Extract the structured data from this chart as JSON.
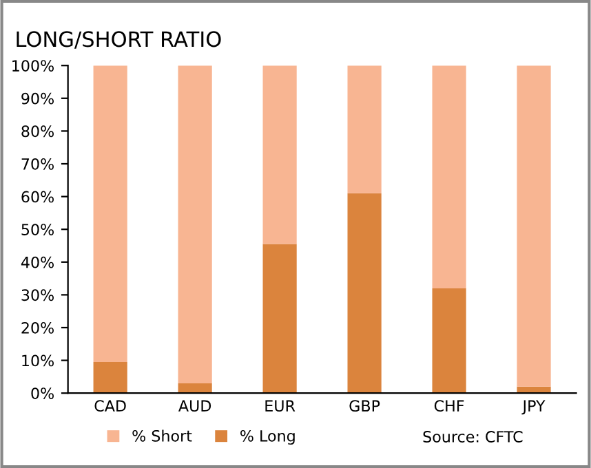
{
  "chart_data": {
    "type": "bar",
    "title": "LONG/SHORT RATIO",
    "stacked": true,
    "categories": [
      "CAD",
      "AUD",
      "EUR",
      "GBP",
      "CHF",
      "JPY"
    ],
    "series": [
      {
        "name": "% Long",
        "color": "#db843d",
        "values": [
          9.5,
          3,
          45.5,
          61,
          32,
          2
        ]
      },
      {
        "name": "% Short",
        "color": "#f8b592",
        "values": [
          90.5,
          97,
          54.5,
          39,
          68,
          98
        ]
      }
    ],
    "ylim": [
      0,
      100
    ],
    "yticks": [
      {
        "value": 0,
        "label": "0%"
      },
      {
        "value": 10,
        "label": "10%"
      },
      {
        "value": 20,
        "label": "20%"
      },
      {
        "value": 30,
        "label": "30%"
      },
      {
        "value": 40,
        "label": "40%"
      },
      {
        "value": 50,
        "label": "50%"
      },
      {
        "value": 60,
        "label": "60%"
      },
      {
        "value": 70,
        "label": "70%"
      },
      {
        "value": 80,
        "label": "80%"
      },
      {
        "value": 90,
        "label": "90%"
      },
      {
        "value": 100,
        "label": "100%"
      }
    ],
    "legend": "bottom left",
    "annotations": [
      "Source: CFTC"
    ]
  }
}
